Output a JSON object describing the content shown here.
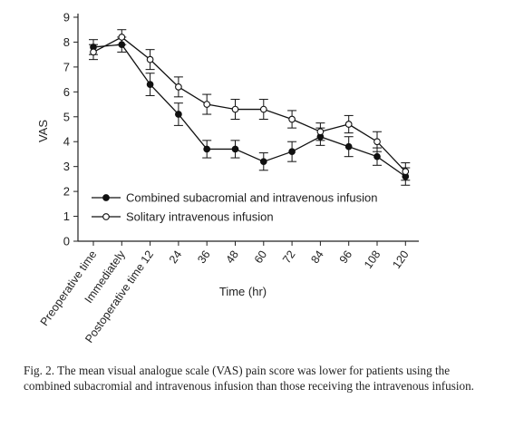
{
  "caption": {
    "label": "Fig. 2.",
    "text": "The mean visual analogue scale (VAS) pain score was lower for patients using the combined subacromial and intravenous infusion than those receiving the intravenous infusion."
  },
  "chart_data": {
    "type": "line",
    "title": "",
    "xlabel": "Time (hr)",
    "ylabel": "VAS",
    "ylim": [
      0,
      9
    ],
    "yticks": [
      0,
      1,
      2,
      3,
      4,
      5,
      6,
      7,
      8,
      9
    ],
    "categories": [
      "Preoperative time",
      "Immediately",
      "Postoperative time 12",
      "24",
      "36",
      "48",
      "60",
      "72",
      "84",
      "96",
      "108",
      "120"
    ],
    "grid": false,
    "legend_placement": "bottom-left inside plot",
    "series": [
      {
        "name": "Combined subacromial and intravenous infusion",
        "marker": "filled-circle",
        "color": "#111111",
        "values": [
          7.8,
          7.9,
          6.3,
          5.1,
          3.7,
          3.7,
          3.2,
          3.6,
          4.2,
          3.8,
          3.4,
          2.6
        ],
        "error": [
          0.3,
          0.3,
          0.45,
          0.45,
          0.35,
          0.35,
          0.35,
          0.4,
          0.35,
          0.4,
          0.35,
          0.35
        ]
      },
      {
        "name": "Solitary intravenous infusion",
        "marker": "open-circle",
        "color": "#111111",
        "values": [
          7.6,
          8.2,
          7.3,
          6.2,
          5.5,
          5.3,
          5.3,
          4.9,
          4.4,
          4.7,
          4.0,
          2.8
        ],
        "error": [
          0.3,
          0.3,
          0.4,
          0.4,
          0.4,
          0.4,
          0.4,
          0.35,
          0.35,
          0.35,
          0.4,
          0.35
        ]
      }
    ]
  }
}
